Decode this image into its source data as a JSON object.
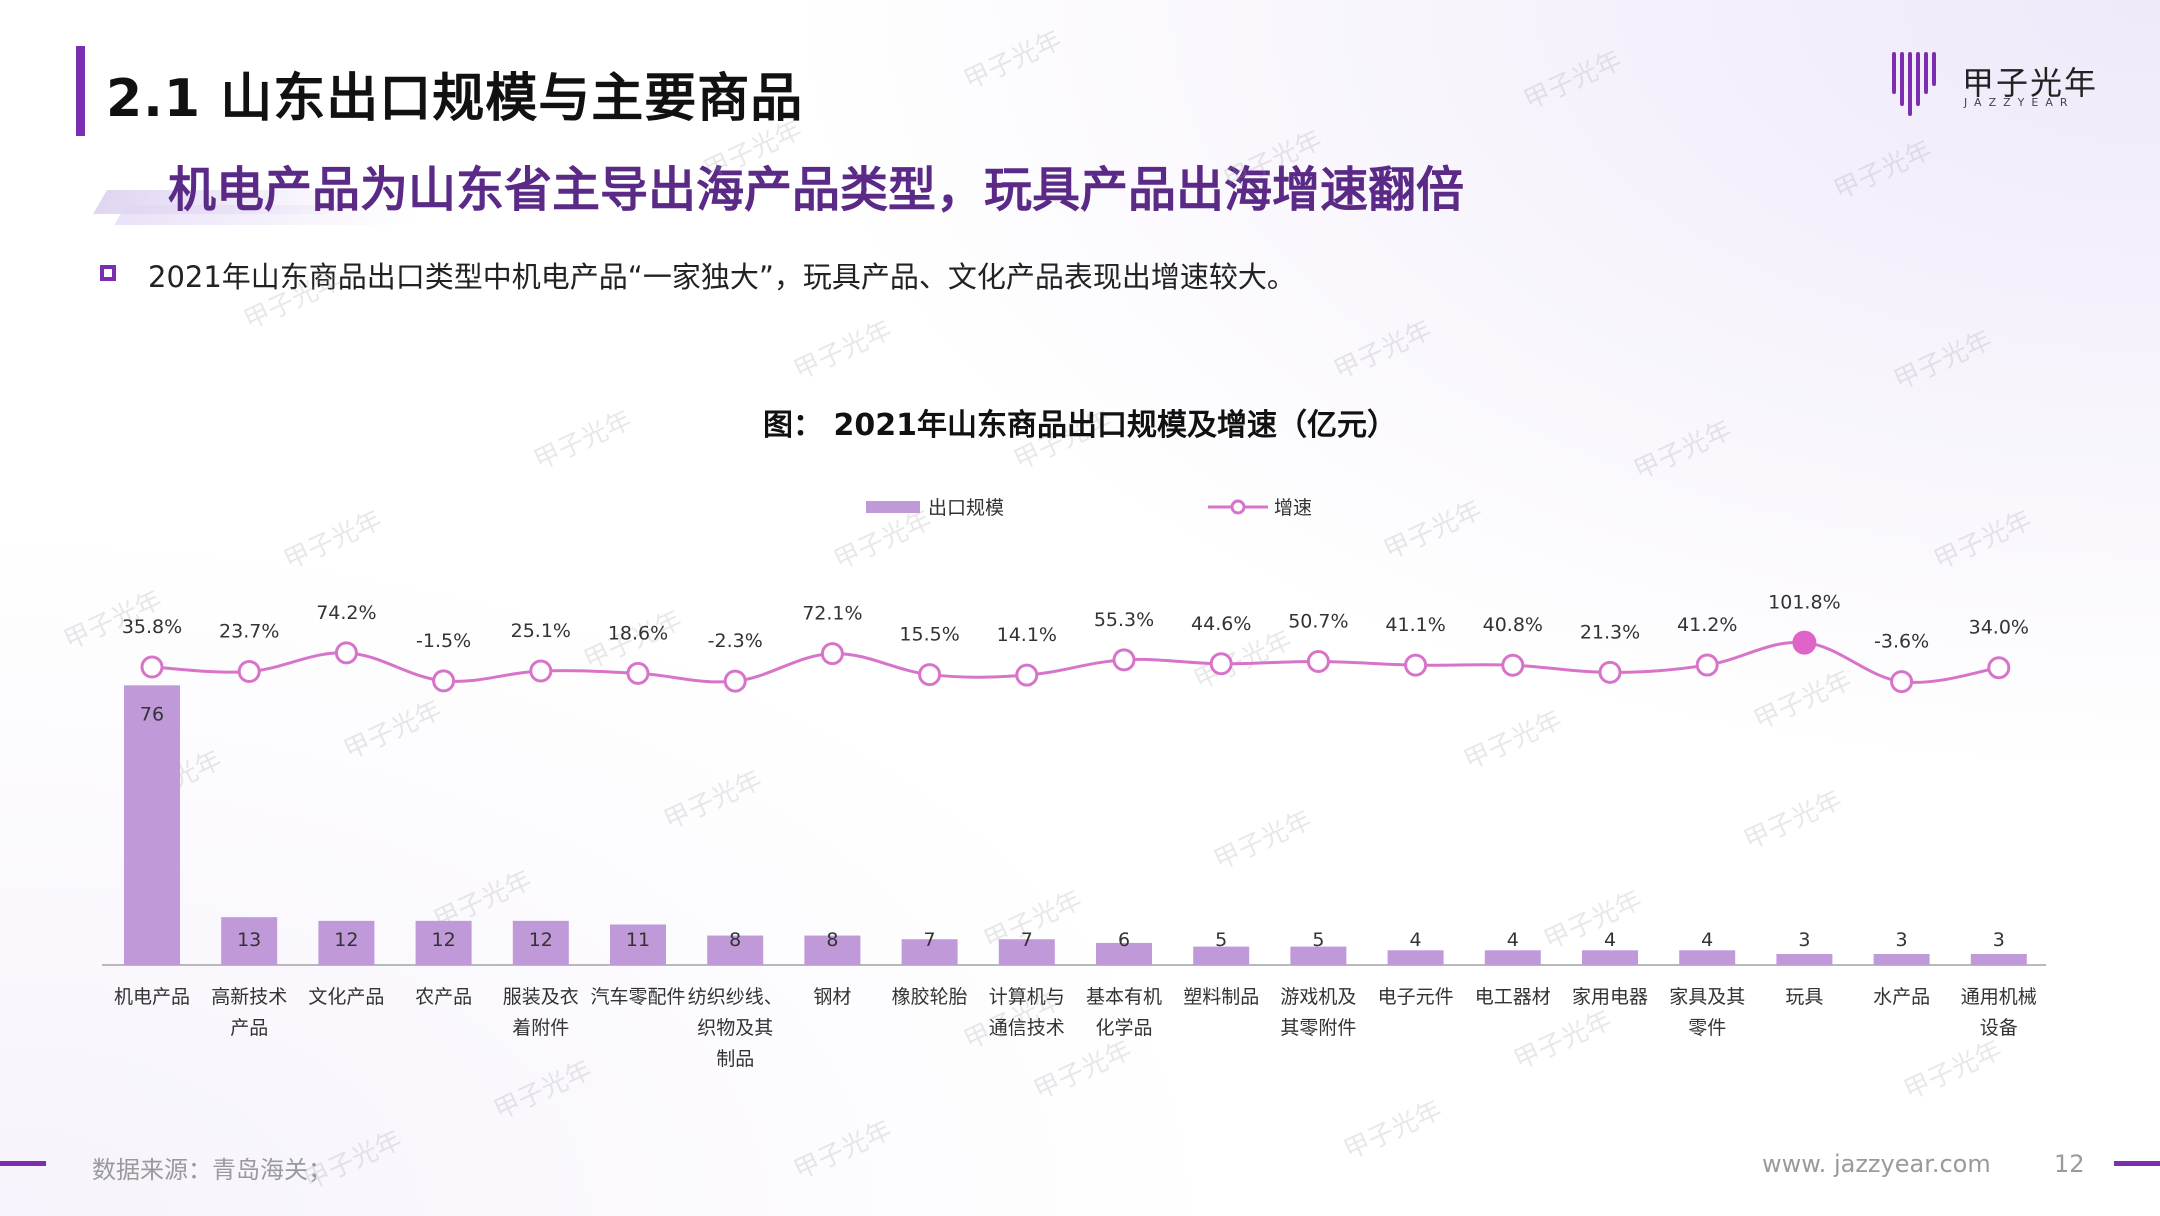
{
  "header": {
    "title": "2.1 山东出口规模与主要商品",
    "subtitle": "机电产品为山东省主导出海产品类型，玩具产品出海增速翻倍",
    "bullet": "2021年山东商品出口类型中机电产品“一家独大”，玩具产品、文化产品表现出增速较大。"
  },
  "logo": {
    "name": "甲子光年",
    "sub": "JAZZYEAR"
  },
  "watermark": "甲子光年",
  "footer": {
    "source": "数据来源：青岛海关；",
    "website": "www. jazzyear.com",
    "page": "12"
  },
  "colors": {
    "accent": "#7b2fb0",
    "bar": "#c09ad8",
    "line": "#d774c9",
    "highlight": "#e064c8"
  },
  "chart_data": {
    "type": "bar",
    "title": "图： 2021年山东商品出口规模及增速（亿元）",
    "legend_position": "top",
    "categories": [
      [
        "机电产品"
      ],
      [
        "高新技术",
        "产品"
      ],
      [
        "文化产品"
      ],
      [
        "农产品"
      ],
      [
        "服装及衣",
        "着附件"
      ],
      [
        "汽车零配件"
      ],
      [
        "纺织纱线、",
        "织物及其",
        "制品"
      ],
      [
        "钢材"
      ],
      [
        "橡胶轮胎"
      ],
      [
        "计算机与",
        "通信技术"
      ],
      [
        "基本有机",
        "化学品"
      ],
      [
        "塑料制品"
      ],
      [
        "游戏机及",
        "其零附件"
      ],
      [
        "电子元件"
      ],
      [
        "电工器材"
      ],
      [
        "家用电器"
      ],
      [
        "家具及其",
        "零件"
      ],
      [
        "玩具"
      ],
      [
        "水产品"
      ],
      [
        "通用机械",
        "设备"
      ]
    ],
    "series": [
      {
        "name": "出口规模",
        "type": "bar",
        "values": [
          76,
          13,
          12,
          12,
          12,
          11,
          8,
          8,
          7,
          7,
          6,
          5,
          5,
          4,
          4,
          4,
          4,
          3,
          3,
          3
        ]
      },
      {
        "name": "增速",
        "type": "line",
        "values": [
          35.8,
          23.7,
          74.2,
          -1.5,
          25.1,
          18.6,
          -2.3,
          72.1,
          15.5,
          14.1,
          55.3,
          44.6,
          50.7,
          41.1,
          40.8,
          21.3,
          41.2,
          101.8,
          -3.6,
          34.0
        ],
        "labels": [
          "35.8%",
          "23.7%",
          "74.2%",
          "-1.5%",
          "25.1%",
          "18.6%",
          "-2.3%",
          "72.1%",
          "15.5%",
          "14.1%",
          "55.3%",
          "44.6%",
          "50.7%",
          "41.1%",
          "40.8%",
          "21.3%",
          "41.2%",
          "101.8%",
          "-3.6%",
          "34.0%"
        ],
        "highlight_index": 17
      }
    ]
  }
}
